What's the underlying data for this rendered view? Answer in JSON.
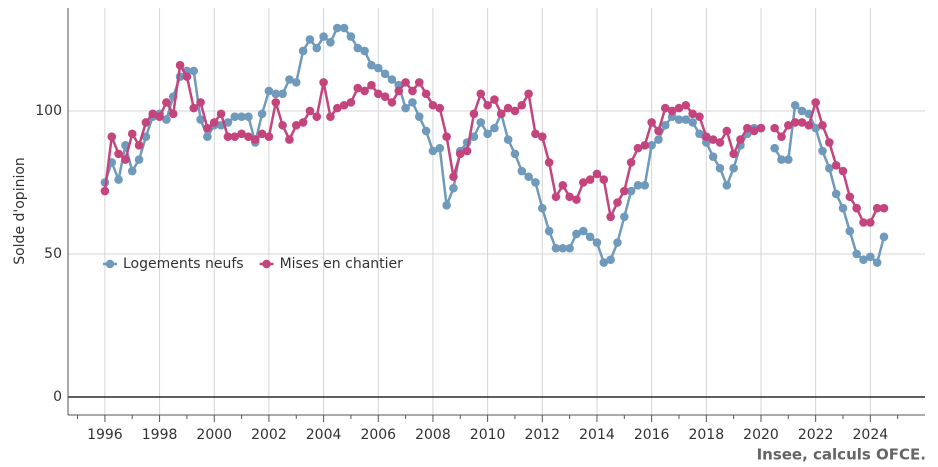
{
  "chart_data": {
    "type": "line",
    "y_label": "Solde d'opinion",
    "source": "Insee, calculs OFCE.",
    "x": [
      1996,
      1996.25,
      1996.5,
      1996.75,
      1997,
      1997.25,
      1997.5,
      1997.75,
      1998,
      1998.25,
      1998.5,
      1998.75,
      1999,
      1999.25,
      1999.5,
      1999.75,
      2000,
      2000.25,
      2000.5,
      2000.75,
      2001,
      2001.25,
      2001.5,
      2001.75,
      2002,
      2002.25,
      2002.5,
      2002.75,
      2003,
      2003.25,
      2003.5,
      2003.75,
      2004,
      2004.25,
      2004.5,
      2004.75,
      2005,
      2005.25,
      2005.5,
      2005.75,
      2006,
      2006.25,
      2006.5,
      2006.75,
      2007,
      2007.25,
      2007.5,
      2007.75,
      2008,
      2008.25,
      2008.5,
      2008.75,
      2009,
      2009.25,
      2009.5,
      2009.75,
      2010,
      2010.25,
      2010.5,
      2010.75,
      2011,
      2011.25,
      2011.5,
      2011.75,
      2012,
      2012.25,
      2012.5,
      2012.75,
      2013,
      2013.25,
      2013.5,
      2013.75,
      2014,
      2014.25,
      2014.5,
      2014.75,
      2015,
      2015.25,
      2015.5,
      2015.75,
      2016,
      2016.25,
      2016.5,
      2016.75,
      2017,
      2017.25,
      2017.5,
      2017.75,
      2018,
      2018.25,
      2018.5,
      2018.75,
      2019,
      2019.25,
      2019.5,
      2019.75,
      2020,
      2020.25,
      2020.5,
      2020.75,
      2021,
      2021.25,
      2021.5,
      2021.75,
      2022,
      2022.25,
      2022.5,
      2022.75,
      2023,
      2023.25,
      2023.5,
      2023.75,
      2024,
      2024.25,
      2024.5
    ],
    "series": [
      {
        "name": "Logements neufs",
        "color": "#6f9abb",
        "values": [
          75,
          82,
          76,
          88,
          79,
          83,
          91,
          98,
          99,
          97,
          105,
          112,
          114,
          114,
          97,
          91,
          95,
          95,
          96,
          98,
          98,
          98,
          89,
          99,
          107,
          106,
          106,
          111,
          110,
          121,
          125,
          122,
          126,
          124,
          129,
          129,
          126,
          122,
          121,
          116,
          115,
          113,
          111,
          109,
          101,
          103,
          98,
          93,
          86,
          87,
          67,
          73,
          86,
          89,
          91,
          96,
          92,
          94,
          99,
          90,
          85,
          79,
          77,
          75,
          66,
          58,
          52,
          52,
          52,
          57,
          58,
          56,
          54,
          47,
          48,
          54,
          63,
          72,
          74,
          74,
          88,
          90,
          95,
          98,
          97,
          97,
          96,
          92,
          89,
          84,
          80,
          74,
          80,
          88,
          92,
          94,
          94,
          null,
          87,
          83,
          83,
          102,
          100,
          99,
          94,
          86,
          80,
          71,
          66,
          58,
          50,
          48,
          49,
          47,
          56
        ]
      },
      {
        "name": "Mises en chantier",
        "color": "#c4447e",
        "values": [
          72,
          91,
          85,
          83,
          92,
          88,
          96,
          99,
          98,
          103,
          99,
          116,
          112,
          101,
          103,
          94,
          96,
          99,
          91,
          91,
          92,
          91,
          90,
          92,
          91,
          103,
          95,
          90,
          95,
          96,
          100,
          98,
          110,
          98,
          101,
          102,
          103,
          108,
          107,
          109,
          106,
          105,
          103,
          107,
          110,
          107,
          110,
          106,
          102,
          101,
          91,
          77,
          85,
          86,
          99,
          106,
          102,
          104,
          99,
          101,
          100,
          102,
          106,
          92,
          91,
          82,
          70,
          74,
          70,
          69,
          75,
          76,
          78,
          76,
          63,
          68,
          72,
          82,
          87,
          88,
          96,
          93,
          101,
          100,
          101,
          102,
          99,
          98,
          91,
          90,
          89,
          93,
          85,
          90,
          94,
          93,
          94,
          null,
          94,
          91,
          95,
          96,
          96,
          95,
          103,
          95,
          89,
          81,
          79,
          70,
          66,
          61,
          61,
          66,
          66
        ]
      }
    ],
    "xlim": [
      1994.65,
      2026
    ],
    "ylim": [
      -6.3,
      136
    ],
    "xticks": [
      1996,
      1998,
      2000,
      2002,
      2004,
      2006,
      2008,
      2010,
      2012,
      2014,
      2016,
      2018,
      2020,
      2022,
      2024
    ],
    "xminorticks": [
      1995,
      1997,
      1999,
      2001,
      2003,
      2005,
      2007,
      2009,
      2011,
      2013,
      2015,
      2017,
      2019,
      2021,
      2023,
      2025
    ],
    "yticks": [
      0,
      50,
      100
    ],
    "grid": true,
    "legend": "lower left"
  }
}
